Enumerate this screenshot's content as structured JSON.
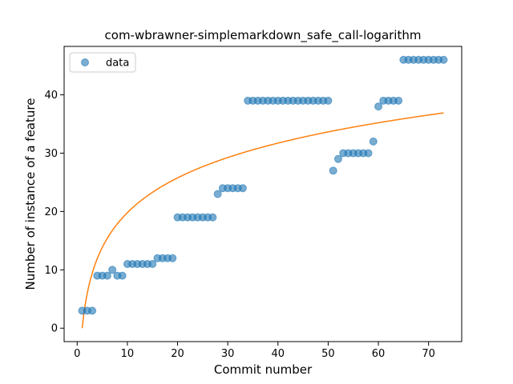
{
  "chart_data": {
    "type": "scatter",
    "title": "com-wbrawner-simplemarkdown_safe_call-logarithm",
    "xlabel": "Commit number",
    "ylabel": "Number of instance of a feature",
    "xlim": [
      -2.6,
      76.6
    ],
    "ylim": [
      -2.3,
      48.3
    ],
    "xticks": [
      0,
      10,
      20,
      30,
      40,
      50,
      60,
      70
    ],
    "yticks": [
      0,
      10,
      20,
      30,
      40
    ],
    "grid": false,
    "legend_position": "upper-left",
    "series": [
      {
        "name": "data",
        "kind": "scatter",
        "color": "#1f77b4",
        "alpha": 0.6,
        "x": [
          1,
          2,
          3,
          4,
          5,
          6,
          7,
          8,
          9,
          10,
          11,
          12,
          13,
          14,
          15,
          16,
          17,
          18,
          19,
          20,
          21,
          22,
          23,
          24,
          25,
          26,
          27,
          28,
          29,
          30,
          31,
          32,
          33,
          34,
          35,
          36,
          37,
          38,
          39,
          40,
          41,
          42,
          43,
          44,
          45,
          46,
          47,
          48,
          49,
          50,
          51,
          52,
          53,
          54,
          55,
          56,
          57,
          58,
          59,
          60,
          61,
          62,
          63,
          64,
          65,
          66,
          67,
          68,
          69,
          70,
          71,
          72,
          73
        ],
        "y": [
          3,
          3,
          3,
          9,
          9,
          9,
          10,
          9,
          9,
          11,
          11,
          11,
          11,
          11,
          11,
          12,
          12,
          12,
          12,
          19,
          19,
          19,
          19,
          19,
          19,
          19,
          19,
          23,
          24,
          24,
          24,
          24,
          24,
          39,
          39,
          39,
          39,
          39,
          39,
          39,
          39,
          39,
          39,
          39,
          39,
          39,
          39,
          39,
          39,
          39,
          27,
          29,
          30,
          30,
          30,
          30,
          30,
          30,
          32,
          38,
          39,
          39,
          39,
          39,
          46,
          46,
          46,
          46,
          46,
          46,
          46,
          46,
          46
        ]
      },
      {
        "kind": "line",
        "color": "#ff7f0e",
        "model": "logarithmic",
        "a": 8.6,
        "b": 0.0,
        "x_start": 1,
        "x_end": 73
      }
    ]
  }
}
